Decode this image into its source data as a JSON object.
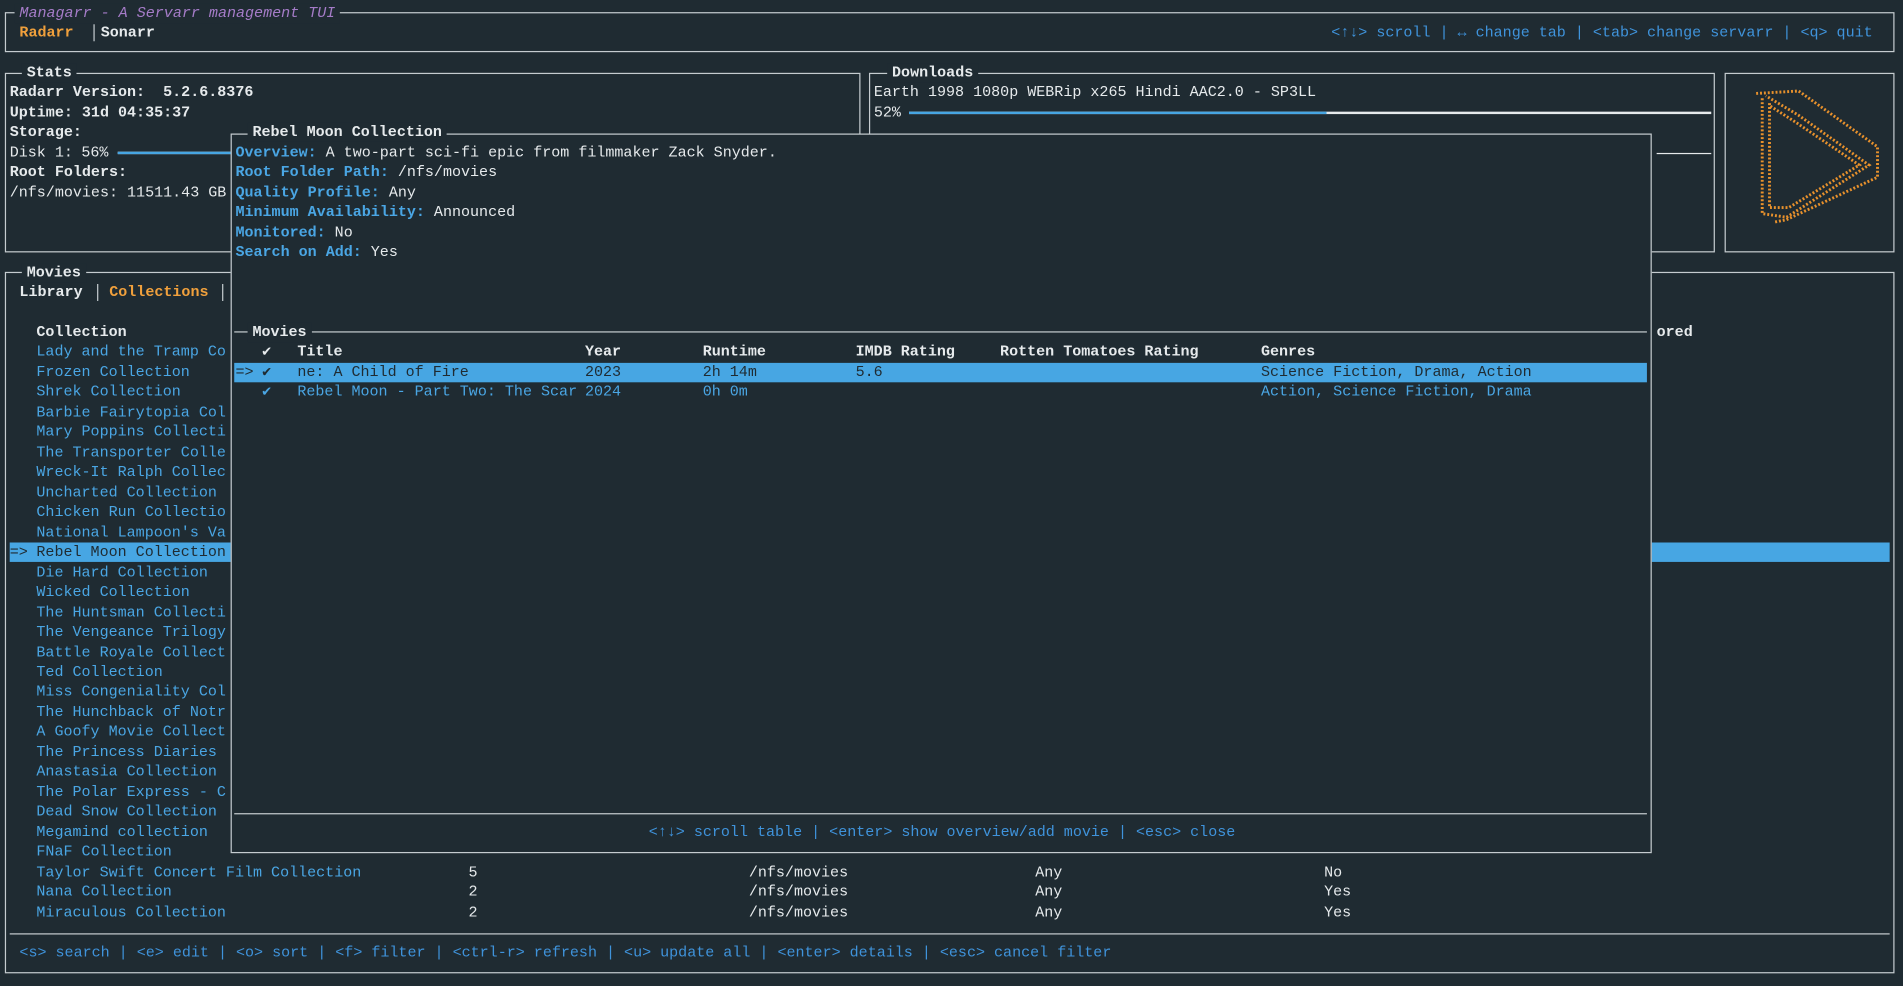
{
  "header": {
    "title": "Managarr - A Servarr management TUI",
    "tabs": [
      "Radarr",
      "Sonarr"
    ],
    "help": "<↑↓> scroll | ↔ change tab | <tab> change servarr | <q> quit"
  },
  "stats": {
    "title": "Stats",
    "version": "Radarr Version:  5.2.6.8376",
    "uptime": "Uptime: 31d 04:35:37",
    "storage": "Storage:",
    "disk": {
      "label": "Disk 1:",
      "percent": 56,
      "percent_label": "56%"
    },
    "root_folders": "Root Folders:",
    "root_folder": "/nfs/movies: 11511.43 GB"
  },
  "downloads": {
    "title": "Downloads",
    "items": [
      {
        "name": "Earth 1998 1080p WEBRip x265 Hindi AAC2.0 - SP3LL",
        "progress": 52,
        "progress_label": "52%"
      }
    ]
  },
  "movies": {
    "title": "Movies",
    "tabs": [
      "Library",
      "Collections"
    ],
    "columns": [
      "Collection",
      "ored"
    ],
    "selected_marker": "=>",
    "selected": 10,
    "rows": [
      [
        "Lady and the Tramp Co"
      ],
      [
        "Frozen Collection"
      ],
      [
        "Shrek Collection"
      ],
      [
        "Barbie Fairytopia Col"
      ],
      [
        "Mary Poppins Collecti"
      ],
      [
        "The Transporter Colle"
      ],
      [
        "Wreck-It Ralph Collec"
      ],
      [
        "Uncharted Collection"
      ],
      [
        "Chicken Run Collectio"
      ],
      [
        "National Lampoon's Va"
      ],
      [
        "Rebel Moon Collection"
      ],
      [
        "Die Hard Collection"
      ],
      [
        "Wicked Collection"
      ],
      [
        "The Huntsman Collecti"
      ],
      [
        "The Vengeance Trilogy"
      ],
      [
        "Battle Royale Collect"
      ],
      [
        "Ted Collection"
      ],
      [
        "Miss Congeniality Col"
      ],
      [
        "The Hunchback of Notr"
      ],
      [
        "A Goofy Movie Collect"
      ],
      [
        "The Princess Diaries"
      ],
      [
        "Anastasia Collection"
      ],
      [
        "The Polar Express - C"
      ],
      [
        "Dead Snow Collection"
      ],
      [
        "Megamind collection"
      ],
      [
        "FNaF Collection"
      ],
      [
        "Taylor Swift Concert Film Collection",
        5,
        "/nfs/movies",
        "Any",
        "No"
      ],
      [
        "Nana Collection",
        2,
        "/nfs/movies",
        "Any",
        "Yes"
      ],
      [
        "Miraculous Collection",
        2,
        "/nfs/movies",
        "Any",
        "Yes"
      ]
    ],
    "help": "<s> search | <e> edit | <o> sort | <f> filter | <ctrl-r> refresh | <u> update all | <enter> details | <esc> cancel filter"
  },
  "popup": {
    "title": "Rebel Moon Collection",
    "details": [
      {
        "label": "Overview:",
        "value": "A two-part sci-fi epic from filmmaker Zack Snyder."
      },
      {
        "label": "Root Folder Path:",
        "value": "/nfs/movies"
      },
      {
        "label": "Quality Profile:",
        "value": "Any"
      },
      {
        "label": "Minimum Availability:",
        "value": "Announced"
      },
      {
        "label": "Monitored:",
        "value": "No"
      },
      {
        "label": "Search on Add:",
        "value": "Yes"
      }
    ],
    "movies": {
      "title": "Movies",
      "columns": [
        "✔",
        "Title",
        "Year",
        "Runtime",
        "IMDB Rating",
        "Rotten Tomatoes Rating",
        "Genres"
      ],
      "selected_marker": "=>",
      "selected": 0,
      "rows": [
        [
          "✔",
          "ne: A Child of Fire",
          2023,
          "2h 14m",
          5.6,
          null,
          "Science Fiction, Drama, Action"
        ],
        [
          "✔",
          "Rebel Moon - Part Two: The Scar",
          2024,
          "0h 0m",
          null,
          null,
          "Action, Science Fiction, Drama"
        ]
      ]
    },
    "help": "<↑↓> scroll table | <enter> show overview/add movie | <esc> close"
  }
}
